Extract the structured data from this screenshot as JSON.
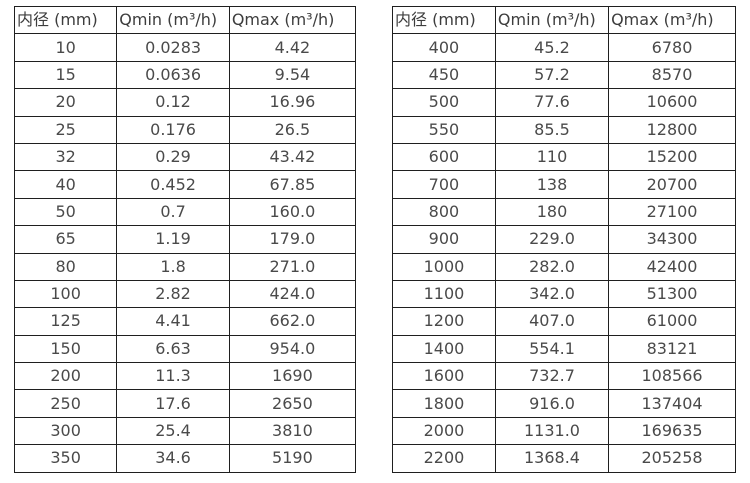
{
  "page": {
    "background_color": "#ffffff",
    "border_color": "#1f1f1f",
    "header_text_color": "#3d3d3d",
    "cell_text_color": "#4a4a4a"
  },
  "tables": [
    {
      "name": "flow-rates-small-diameters",
      "headers": [
        "内径 (mm)",
        "Qmin (m³/h)",
        "Qmax (m³/h)"
      ],
      "rows": [
        [
          "10",
          "0.0283",
          "4.42"
        ],
        [
          "15",
          "0.0636",
          "9.54"
        ],
        [
          "20",
          "0.12",
          "16.96"
        ],
        [
          "25",
          "0.176",
          "26.5"
        ],
        [
          "32",
          "0.29",
          "43.42"
        ],
        [
          "40",
          "0.452",
          "67.85"
        ],
        [
          "50",
          "0.7",
          "160.0"
        ],
        [
          "65",
          "1.19",
          "179.0"
        ],
        [
          "80",
          "1.8",
          "271.0"
        ],
        [
          "100",
          "2.82",
          "424.0"
        ],
        [
          "125",
          "4.41",
          "662.0"
        ],
        [
          "150",
          "6.63",
          "954.0"
        ],
        [
          "200",
          "11.3",
          "1690"
        ],
        [
          "250",
          "17.6",
          "2650"
        ],
        [
          "300",
          "25.4",
          "3810"
        ],
        [
          "350",
          "34.6",
          "5190"
        ]
      ]
    },
    {
      "name": "flow-rates-large-diameters",
      "headers": [
        "内径 (mm)",
        "Qmin (m³/h)",
        "Qmax (m³/h)"
      ],
      "rows": [
        [
          "400",
          "45.2",
          "6780"
        ],
        [
          "450",
          "57.2",
          "8570"
        ],
        [
          "500",
          "77.6",
          "10600"
        ],
        [
          "550",
          "85.5",
          "12800"
        ],
        [
          "600",
          "110",
          "15200"
        ],
        [
          "700",
          "138",
          "20700"
        ],
        [
          "800",
          "180",
          "27100"
        ],
        [
          "900",
          "229.0",
          "34300"
        ],
        [
          "1000",
          "282.0",
          "42400"
        ],
        [
          "1100",
          "342.0",
          "51300"
        ],
        [
          "1200",
          "407.0",
          "61000"
        ],
        [
          "1400",
          "554.1",
          "83121"
        ],
        [
          "1600",
          "732.7",
          "108566"
        ],
        [
          "1800",
          "916.0",
          "137404"
        ],
        [
          "2000",
          "1131.0",
          "169635"
        ],
        [
          "2200",
          "1368.4",
          "205258"
        ]
      ]
    }
  ]
}
